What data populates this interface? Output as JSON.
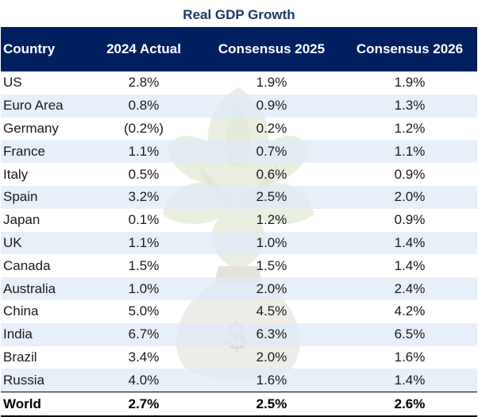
{
  "title": "Real GDP Growth",
  "headers": {
    "country": "Country",
    "actual_2024": "2024 Actual",
    "consensus_2025": "Consensus 2025",
    "consensus_2026": "Consensus 2026"
  },
  "rows": [
    {
      "country": "US",
      "actual_2024": "2.8%",
      "consensus_2025": "1.9%",
      "consensus_2026": "1.9%"
    },
    {
      "country": "Euro Area",
      "actual_2024": "0.8%",
      "consensus_2025": "0.9%",
      "consensus_2026": "1.3%"
    },
    {
      "country": "Germany",
      "actual_2024": "(0.2%)",
      "consensus_2025": "0.2%",
      "consensus_2026": "1.2%"
    },
    {
      "country": "France",
      "actual_2024": "1.1%",
      "consensus_2025": "0.7%",
      "consensus_2026": "1.1%"
    },
    {
      "country": "Italy",
      "actual_2024": "0.5%",
      "consensus_2025": "0.6%",
      "consensus_2026": "0.9%"
    },
    {
      "country": "Spain",
      "actual_2024": "3.2%",
      "consensus_2025": "2.5%",
      "consensus_2026": "2.0%"
    },
    {
      "country": "Japan",
      "actual_2024": "0.1%",
      "consensus_2025": "1.2%",
      "consensus_2026": "0.9%"
    },
    {
      "country": "UK",
      "actual_2024": "1.1%",
      "consensus_2025": "1.0%",
      "consensus_2026": "1.4%"
    },
    {
      "country": "Canada",
      "actual_2024": "1.5%",
      "consensus_2025": "1.5%",
      "consensus_2026": "1.4%"
    },
    {
      "country": "Australia",
      "actual_2024": "1.0%",
      "consensus_2025": "2.0%",
      "consensus_2026": "2.4%"
    },
    {
      "country": "China",
      "actual_2024": "5.0%",
      "consensus_2025": "4.5%",
      "consensus_2026": "4.2%"
    },
    {
      "country": "India",
      "actual_2024": "6.7%",
      "consensus_2025": "6.3%",
      "consensus_2026": "6.5%"
    },
    {
      "country": "Brazil",
      "actual_2024": "3.4%",
      "consensus_2025": "2.0%",
      "consensus_2026": "1.6%"
    },
    {
      "country": "Russia",
      "actual_2024": "4.0%",
      "consensus_2025": "1.6%",
      "consensus_2026": "1.4%"
    }
  ],
  "total": {
    "country": "World",
    "actual_2024": "2.7%",
    "consensus_2025": "2.5%",
    "consensus_2026": "2.6%"
  },
  "colors": {
    "header_bg": "#002060",
    "title_color": "#1f3864",
    "alt_row_bg": "#deeaf6"
  },
  "watermark": {
    "icon": "artichoke-money-bag-icon",
    "symbol": "$"
  }
}
